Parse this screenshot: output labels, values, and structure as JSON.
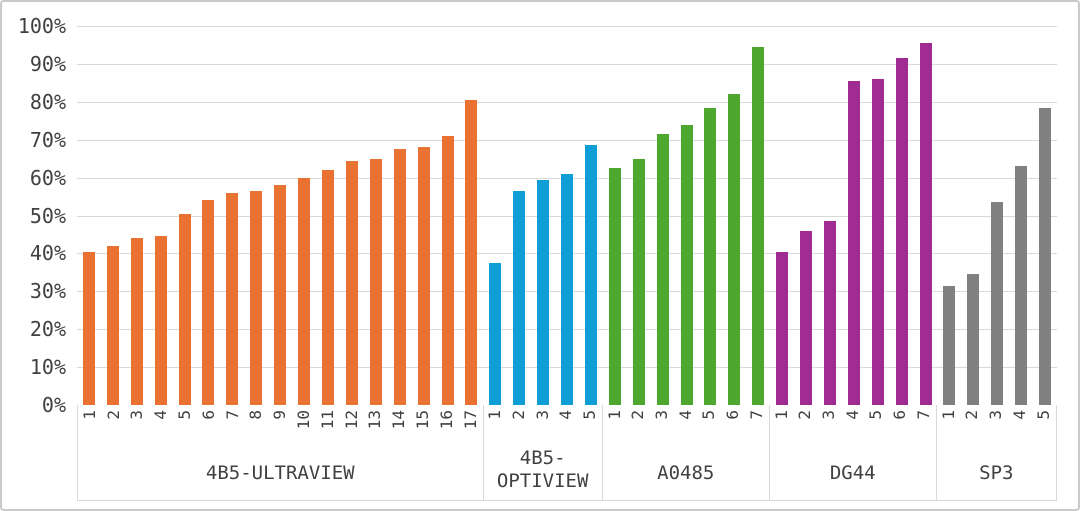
{
  "chart_data": {
    "type": "bar",
    "title": "",
    "xlabel": "",
    "ylabel": "",
    "ylim": [
      0,
      100
    ],
    "grid": true,
    "legend": "none",
    "yticks": [
      {
        "value": 0,
        "label": "0%"
      },
      {
        "value": 10,
        "label": "10%"
      },
      {
        "value": 20,
        "label": "20%"
      },
      {
        "value": 30,
        "label": "30%"
      },
      {
        "value": 40,
        "label": "40%"
      },
      {
        "value": 50,
        "label": "50%"
      },
      {
        "value": 60,
        "label": "60%"
      },
      {
        "value": 70,
        "label": "70%"
      },
      {
        "value": 80,
        "label": "80%"
      },
      {
        "value": 90,
        "label": "90%"
      },
      {
        "value": 100,
        "label": "100%"
      }
    ],
    "groups": [
      {
        "label": "4B5-ULTRAVIEW",
        "color": "#E97132",
        "categories": [
          "1",
          "2",
          "3",
          "4",
          "5",
          "6",
          "7",
          "8",
          "9",
          "10",
          "11",
          "12",
          "13",
          "14",
          "15",
          "16",
          "17"
        ],
        "values": [
          40.5,
          42,
          44,
          44.5,
          50.5,
          54,
          56,
          56.5,
          58,
          60,
          62,
          64.5,
          65,
          67.5,
          68,
          71,
          80.5
        ]
      },
      {
        "label": "4B5-OPTIVIEW",
        "color": "#0F9ED5",
        "categories": [
          "1",
          "2",
          "3",
          "4",
          "5"
        ],
        "values": [
          37.5,
          56.5,
          59.5,
          61,
          68.5
        ]
      },
      {
        "label": "A0485",
        "color": "#4EA72E",
        "categories": [
          "1",
          "2",
          "3",
          "4",
          "5",
          "6",
          "7"
        ],
        "values": [
          62.5,
          65,
          71.5,
          74,
          78.5,
          82,
          94.5
        ]
      },
      {
        "label": "DG44",
        "color": "#A02B93",
        "categories": [
          "1",
          "2",
          "3",
          "4",
          "5",
          "6",
          "7"
        ],
        "values": [
          40.5,
          46,
          48.5,
          85.5,
          86,
          91.5,
          95.5
        ]
      },
      {
        "label": "SP3",
        "color": "#808080",
        "categories": [
          "1",
          "2",
          "3",
          "4",
          "5"
        ],
        "values": [
          31.5,
          34.5,
          53.5,
          63,
          78.5
        ]
      }
    ]
  },
  "styles": {
    "gridline_color": "#d9d9d9",
    "axis_text_color": "#404040",
    "frame_border_color": "#c9c9c9",
    "background": "#ffffff"
  }
}
